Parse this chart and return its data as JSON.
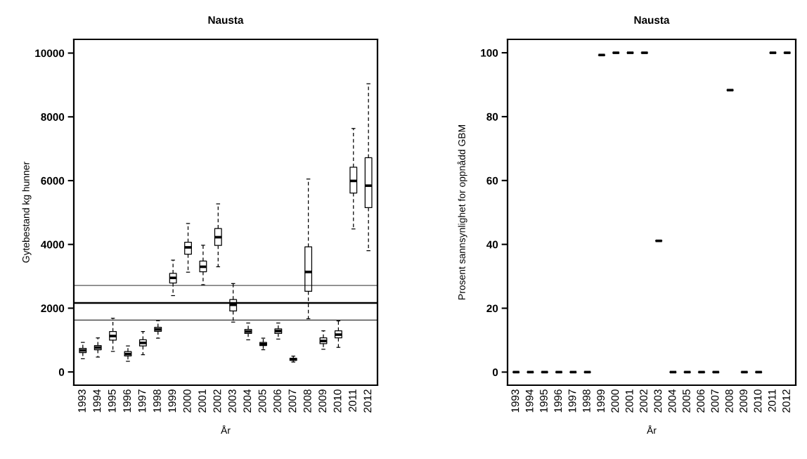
{
  "chart_data": [
    {
      "type": "box",
      "title": "Nausta",
      "xlabel": "År",
      "ylabel": "Gytebestand kg hunner",
      "categories": [
        "1993",
        "1994",
        "1995",
        "1996",
        "1997",
        "1998",
        "1999",
        "2000",
        "2001",
        "2002",
        "2003",
        "2004",
        "2005",
        "2006",
        "2007",
        "2008",
        "2009",
        "2010",
        "2011",
        "2012"
      ],
      "boxes": [
        {
          "low": 415,
          "q1": 608,
          "median": 675,
          "q3": 741,
          "high": 927
        },
        {
          "low": 467,
          "q1": 697,
          "median": 764,
          "q3": 830,
          "high": 1068
        },
        {
          "low": 645,
          "q1": 1001,
          "median": 1127,
          "q3": 1268,
          "high": 1683
        },
        {
          "low": 334,
          "q1": 504,
          "median": 563,
          "q3": 638,
          "high": 816
        },
        {
          "low": 541,
          "q1": 816,
          "median": 912,
          "q3": 1008,
          "high": 1268
        },
        {
          "low": 1060,
          "q1": 1275,
          "median": 1335,
          "q3": 1401,
          "high": 1609
        },
        {
          "low": 2395,
          "q1": 2788,
          "median": 2951,
          "q3": 3092,
          "high": 3507
        },
        {
          "low": 3129,
          "q1": 3692,
          "median": 3907,
          "q3": 4070,
          "high": 4656
        },
        {
          "low": 2736,
          "q1": 3144,
          "median": 3299,
          "q3": 3477,
          "high": 3974
        },
        {
          "low": 3299,
          "q1": 3966,
          "median": 4226,
          "q3": 4500,
          "high": 5271
        },
        {
          "low": 1564,
          "q1": 1913,
          "median": 2106,
          "q3": 2269,
          "high": 2773
        },
        {
          "low": 1008,
          "q1": 1208,
          "median": 1268,
          "q3": 1335,
          "high": 1535
        },
        {
          "low": 697,
          "q1": 830,
          "median": 875,
          "q3": 927,
          "high": 1060
        },
        {
          "low": 1031,
          "q1": 1208,
          "median": 1283,
          "q3": 1349,
          "high": 1535
        },
        {
          "low": 311,
          "q1": 363,
          "median": 393,
          "q3": 430,
          "high": 497
        },
        {
          "low": 1668,
          "q1": 2528,
          "median": 3136,
          "q3": 3922,
          "high": 6050
        },
        {
          "low": 712,
          "q1": 890,
          "median": 971,
          "q3": 1068,
          "high": 1290
        },
        {
          "low": 771,
          "q1": 1068,
          "median": 1171,
          "q3": 1290,
          "high": 1601
        },
        {
          "low": 4485,
          "q1": 5612,
          "median": 5991,
          "q3": 6421,
          "high": 7636
        },
        {
          "low": 3803,
          "q1": 5153,
          "median": 5842,
          "q3": 6717,
          "high": 9038
        }
      ],
      "ylim": [
        -415,
        10430
      ],
      "yticks": [
        0,
        2000,
        4000,
        6000,
        8000,
        10000
      ],
      "ref_lines": [
        {
          "axis": "y",
          "value": 2714,
          "color": "#555555"
        },
        {
          "axis": "y",
          "value": 2165,
          "color": "#000000"
        },
        {
          "axis": "y",
          "value": 1624,
          "color": "#333333"
        }
      ]
    },
    {
      "type": "box",
      "title": "Nausta",
      "xlabel": "År",
      "ylabel": "Prosent sannsynlighet for oppnådd GBM",
      "categories": [
        "1993",
        "1994",
        "1995",
        "1996",
        "1997",
        "1998",
        "1999",
        "2000",
        "2001",
        "2002",
        "2003",
        "2004",
        "2005",
        "2006",
        "2007",
        "2008",
        "2009",
        "2010",
        "2011",
        "2012"
      ],
      "boxes": [
        {
          "low": 0,
          "q1": 0,
          "median": 0,
          "q3": 0,
          "high": 0
        },
        {
          "low": 0,
          "q1": 0,
          "median": 0,
          "q3": 0,
          "high": 0
        },
        {
          "low": 0,
          "q1": 0,
          "median": 0,
          "q3": 0,
          "high": 0
        },
        {
          "low": 0,
          "q1": 0,
          "median": 0,
          "q3": 0,
          "high": 0
        },
        {
          "low": 0,
          "q1": 0,
          "median": 0,
          "q3": 0,
          "high": 0
        },
        {
          "low": 0,
          "q1": 0,
          "median": 0,
          "q3": 0,
          "high": 0
        },
        {
          "low": 99.3,
          "q1": 99.3,
          "median": 99.3,
          "q3": 99.3,
          "high": 99.3
        },
        {
          "low": 100,
          "q1": 100,
          "median": 100,
          "q3": 100,
          "high": 100
        },
        {
          "low": 100,
          "q1": 100,
          "median": 100,
          "q3": 100,
          "high": 100
        },
        {
          "low": 100,
          "q1": 100,
          "median": 100,
          "q3": 100,
          "high": 100
        },
        {
          "low": 41.1,
          "q1": 41.1,
          "median": 41.1,
          "q3": 41.1,
          "high": 41.1
        },
        {
          "low": 0,
          "q1": 0,
          "median": 0,
          "q3": 0,
          "high": 0
        },
        {
          "low": 0,
          "q1": 0,
          "median": 0,
          "q3": 0,
          "high": 0
        },
        {
          "low": 0,
          "q1": 0,
          "median": 0,
          "q3": 0,
          "high": 0
        },
        {
          "low": 0,
          "q1": 0,
          "median": 0,
          "q3": 0,
          "high": 0
        },
        {
          "low": 88.3,
          "q1": 88.3,
          "median": 88.3,
          "q3": 88.3,
          "high": 88.3
        },
        {
          "low": 0,
          "q1": 0,
          "median": 0,
          "q3": 0,
          "high": 0
        },
        {
          "low": 0,
          "q1": 0,
          "median": 0,
          "q3": 0,
          "high": 0
        },
        {
          "low": 100,
          "q1": 100,
          "median": 100,
          "q3": 100,
          "high": 100
        },
        {
          "low": 100,
          "q1": 100,
          "median": 100,
          "q3": 100,
          "high": 100
        }
      ],
      "ylim": [
        -4.1,
        104.2
      ],
      "yticks": [
        0,
        20,
        40,
        60,
        80,
        100
      ]
    }
  ]
}
